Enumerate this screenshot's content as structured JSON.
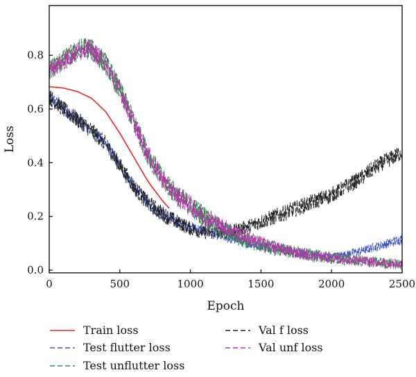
{
  "chart_data": {
    "type": "line",
    "xlabel": "Epoch",
    "ylabel": "Loss",
    "xlim": [
      0,
      2500
    ],
    "ylim": [
      -0.01,
      0.985
    ],
    "xticks": [
      0,
      500,
      1000,
      1500,
      2000,
      2500
    ],
    "yticks": [
      0.0,
      0.2,
      0.4,
      0.6,
      0.8
    ],
    "ytick_labels": [
      "0.0",
      "0.2",
      "0.4",
      "0.6",
      "0.8"
    ],
    "grid": false,
    "legend_position": "bottom",
    "series": [
      {
        "name": "Train loss",
        "color": "#e8262a",
        "dash": "solid",
        "noise": 0.0,
        "x": [
          0,
          100,
          200,
          300,
          400,
          500,
          600,
          700,
          800,
          850
        ],
        "y": [
          0.683,
          0.678,
          0.665,
          0.64,
          0.59,
          0.51,
          0.42,
          0.33,
          0.26,
          0.23
        ]
      },
      {
        "name": "Test flutter loss",
        "color": "#3b56c4",
        "dash": "dashed",
        "noise": 0.018,
        "x": [
          0,
          100,
          200,
          300,
          400,
          500,
          600,
          700,
          800,
          900,
          1000,
          1200,
          1400,
          1600,
          1800,
          2000,
          2100,
          2200,
          2300,
          2400,
          2500
        ],
        "y": [
          0.645,
          0.6,
          0.56,
          0.52,
          0.47,
          0.39,
          0.31,
          0.25,
          0.21,
          0.18,
          0.16,
          0.13,
          0.1,
          0.08,
          0.06,
          0.05,
          0.06,
          0.07,
          0.085,
          0.1,
          0.115
        ]
      },
      {
        "name": "Test unflutter loss",
        "color": "#2f8f43",
        "dash": "dashed",
        "noise": 0.03,
        "x": [
          0,
          100,
          200,
          250,
          300,
          400,
          500,
          600,
          700,
          800,
          900,
          1000,
          1100,
          1200,
          1400,
          1600,
          1800,
          2000,
          2200,
          2400,
          2500
        ],
        "y": [
          0.745,
          0.78,
          0.815,
          0.83,
          0.82,
          0.77,
          0.67,
          0.55,
          0.43,
          0.34,
          0.28,
          0.24,
          0.2,
          0.16,
          0.11,
          0.08,
          0.06,
          0.045,
          0.035,
          0.025,
          0.02
        ]
      },
      {
        "name": "Val f loss",
        "color": "#222222",
        "dash": "dashed",
        "noise": 0.022,
        "x": [
          0,
          100,
          200,
          300,
          400,
          500,
          600,
          700,
          800,
          900,
          1000,
          1100,
          1200,
          1300,
          1400,
          1500,
          1600,
          1700,
          1800,
          1900,
          2000,
          2100,
          2200,
          2300,
          2400,
          2500
        ],
        "y": [
          0.645,
          0.6,
          0.56,
          0.52,
          0.47,
          0.39,
          0.31,
          0.25,
          0.21,
          0.18,
          0.155,
          0.14,
          0.14,
          0.145,
          0.16,
          0.18,
          0.2,
          0.22,
          0.24,
          0.26,
          0.28,
          0.31,
          0.34,
          0.38,
          0.41,
          0.44
        ]
      },
      {
        "name": "Val unf loss",
        "color": "#b433ac",
        "dash": "dashed",
        "noise": 0.026,
        "x": [
          0,
          100,
          200,
          250,
          300,
          400,
          500,
          600,
          700,
          800,
          900,
          1000,
          1100,
          1200,
          1400,
          1600,
          1800,
          2000,
          2200,
          2400,
          2500
        ],
        "y": [
          0.745,
          0.78,
          0.815,
          0.83,
          0.82,
          0.77,
          0.67,
          0.55,
          0.43,
          0.34,
          0.28,
          0.24,
          0.2,
          0.17,
          0.12,
          0.085,
          0.06,
          0.045,
          0.035,
          0.025,
          0.02
        ]
      }
    ]
  }
}
